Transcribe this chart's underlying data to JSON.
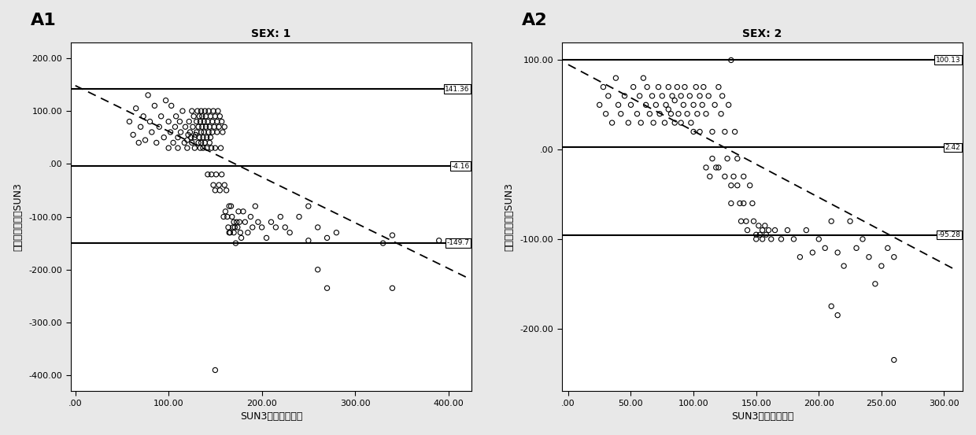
{
  "panel1": {
    "title": "SEX: 1",
    "label": "A1",
    "xlabel": "SUN3与实测值均值",
    "ylabel": "麻烦量测预判与SUN3",
    "xlim": [
      -5,
      425
    ],
    "ylim": [
      -430,
      230
    ],
    "xticks": [
      0,
      100,
      200,
      300,
      400
    ],
    "yticks": [
      -400,
      -300,
      -200,
      -100,
      0,
      100,
      200
    ],
    "hlines": [
      141.36,
      -4.16,
      -149.7
    ],
    "hline_labels": [
      "141.36",
      "-4.16",
      "-149.7"
    ],
    "trend_x0": 0,
    "trend_y0": 148,
    "trend_x1": 420,
    "trend_y1": -215,
    "scatter_x": [
      58,
      62,
      65,
      68,
      70,
      73,
      75,
      78,
      80,
      82,
      85,
      87,
      90,
      92,
      95,
      97,
      100,
      100,
      102,
      103,
      105,
      107,
      108,
      110,
      110,
      112,
      113,
      115,
      117,
      118,
      120,
      120,
      121,
      122,
      123,
      124,
      125,
      125,
      126,
      127,
      128,
      128,
      129,
      130,
      130,
      131,
      132,
      132,
      133,
      133,
      134,
      134,
      135,
      135,
      135,
      136,
      136,
      137,
      137,
      138,
      138,
      139,
      139,
      140,
      140,
      141,
      141,
      142,
      142,
      143,
      143,
      144,
      144,
      145,
      145,
      146,
      146,
      147,
      147,
      148,
      148,
      149,
      150,
      150,
      150,
      151,
      152,
      152,
      153,
      154,
      154,
      155,
      155,
      156,
      157,
      157,
      158,
      159,
      160,
      160,
      161,
      162,
      163,
      164,
      165,
      165,
      166,
      167,
      168,
      169,
      170,
      170,
      171,
      172,
      173,
      174,
      175,
      176,
      177,
      178,
      180,
      182,
      185,
      188,
      190,
      193,
      196,
      200,
      205,
      210,
      215,
      220,
      225,
      230,
      240,
      250,
      260,
      270,
      280,
      330,
      340,
      390,
      150,
      250,
      260,
      270,
      340
    ],
    "scatter_y": [
      80,
      55,
      105,
      40,
      70,
      90,
      45,
      130,
      80,
      60,
      110,
      40,
      70,
      90,
      50,
      120,
      30,
      80,
      60,
      110,
      40,
      70,
      90,
      50,
      30,
      80,
      60,
      100,
      40,
      70,
      45,
      30,
      55,
      80,
      60,
      50,
      100,
      40,
      70,
      90,
      50,
      30,
      55,
      80,
      60,
      100,
      40,
      70,
      90,
      50,
      30,
      80,
      60,
      100,
      40,
      70,
      90,
      50,
      30,
      80,
      60,
      100,
      40,
      70,
      90,
      50,
      30,
      -20,
      80,
      60,
      100,
      40,
      70,
      90,
      50,
      30,
      -20,
      80,
      60,
      100,
      -40,
      70,
      90,
      -50,
      30,
      -20,
      80,
      60,
      100,
      -40,
      70,
      90,
      -50,
      30,
      -20,
      80,
      60,
      -100,
      -40,
      70,
      -90,
      -50,
      -100,
      -120,
      -130,
      -80,
      -130,
      -80,
      -100,
      -120,
      -110,
      -130,
      -120,
      -150,
      -110,
      -120,
      -90,
      -110,
      -130,
      -140,
      -90,
      -110,
      -130,
      -100,
      -120,
      -80,
      -110,
      -120,
      -140,
      -110,
      -120,
      -100,
      -120,
      -130,
      -100,
      -80,
      -120,
      -140,
      -130,
      -150,
      -135,
      -145,
      -390,
      -145,
      -200,
      -235,
      -235,
      -390
    ]
  },
  "panel2": {
    "title": "SEX: 2",
    "label": "A2",
    "xlabel": "SUN3与实测值均值",
    "ylabel": "麻烦量测预判与SUN3",
    "xlim": [
      -5,
      315
    ],
    "ylim": [
      -270,
      120
    ],
    "xticks": [
      0,
      50,
      100,
      150,
      200,
      250,
      300
    ],
    "yticks": [
      -200,
      -100,
      0,
      100
    ],
    "hlines": [
      100.13,
      2.42,
      -95.28
    ],
    "hline_labels": [
      "100.13",
      "2.42",
      "-95.28"
    ],
    "trend_x0": 0,
    "trend_y0": 95,
    "trend_x1": 310,
    "trend_y1": -135,
    "scatter_x": [
      25,
      28,
      30,
      32,
      35,
      38,
      40,
      42,
      45,
      48,
      50,
      52,
      55,
      57,
      58,
      60,
      62,
      63,
      65,
      67,
      68,
      70,
      72,
      73,
      75,
      77,
      78,
      80,
      80,
      82,
      83,
      85,
      85,
      87,
      88,
      90,
      90,
      92,
      93,
      95,
      97,
      98,
      100,
      100,
      102,
      103,
      105,
      105,
      107,
      108,
      110,
      110,
      112,
      113,
      115,
      115,
      117,
      118,
      120,
      120,
      122,
      123,
      125,
      125,
      127,
      128,
      130,
      130,
      132,
      133,
      135,
      135,
      137,
      138,
      140,
      140,
      142,
      143,
      145,
      147,
      148,
      150,
      150,
      152,
      153,
      155,
      155,
      157,
      158,
      160,
      162,
      165,
      170,
      175,
      180,
      185,
      190,
      195,
      200,
      205,
      210,
      215,
      220,
      225,
      230,
      235,
      240,
      245,
      250,
      255,
      260,
      130,
      210,
      215,
      260
    ],
    "scatter_y": [
      50,
      70,
      40,
      60,
      30,
      80,
      50,
      40,
      60,
      30,
      50,
      70,
      40,
      60,
      30,
      80,
      50,
      70,
      40,
      60,
      30,
      50,
      70,
      40,
      60,
      30,
      50,
      70,
      45,
      40,
      60,
      30,
      55,
      70,
      40,
      60,
      30,
      50,
      70,
      40,
      60,
      30,
      20,
      50,
      70,
      40,
      60,
      20,
      50,
      70,
      -20,
      40,
      60,
      -30,
      20,
      -10,
      50,
      -20,
      70,
      -20,
      40,
      60,
      -30,
      20,
      -10,
      50,
      -40,
      -60,
      -30,
      20,
      -10,
      -40,
      -60,
      -80,
      -30,
      -60,
      -80,
      -90,
      -40,
      -60,
      -80,
      -95,
      -100,
      -85,
      -95,
      -90,
      -100,
      -85,
      -95,
      -90,
      -100,
      -90,
      -100,
      -90,
      -100,
      -120,
      -90,
      -115,
      -100,
      -110,
      -80,
      -115,
      -130,
      -80,
      -110,
      -100,
      -120,
      -150,
      -130,
      -110,
      -120,
      100,
      -175,
      -185,
      -235
    ]
  },
  "bg_color": "#e8e8e8",
  "plot_bg": "#ffffff",
  "scatter_marker_size": 20,
  "label_fontsize": 16,
  "title_fontsize": 10,
  "axis_label_fontsize": 9,
  "tick_fontsize": 8
}
